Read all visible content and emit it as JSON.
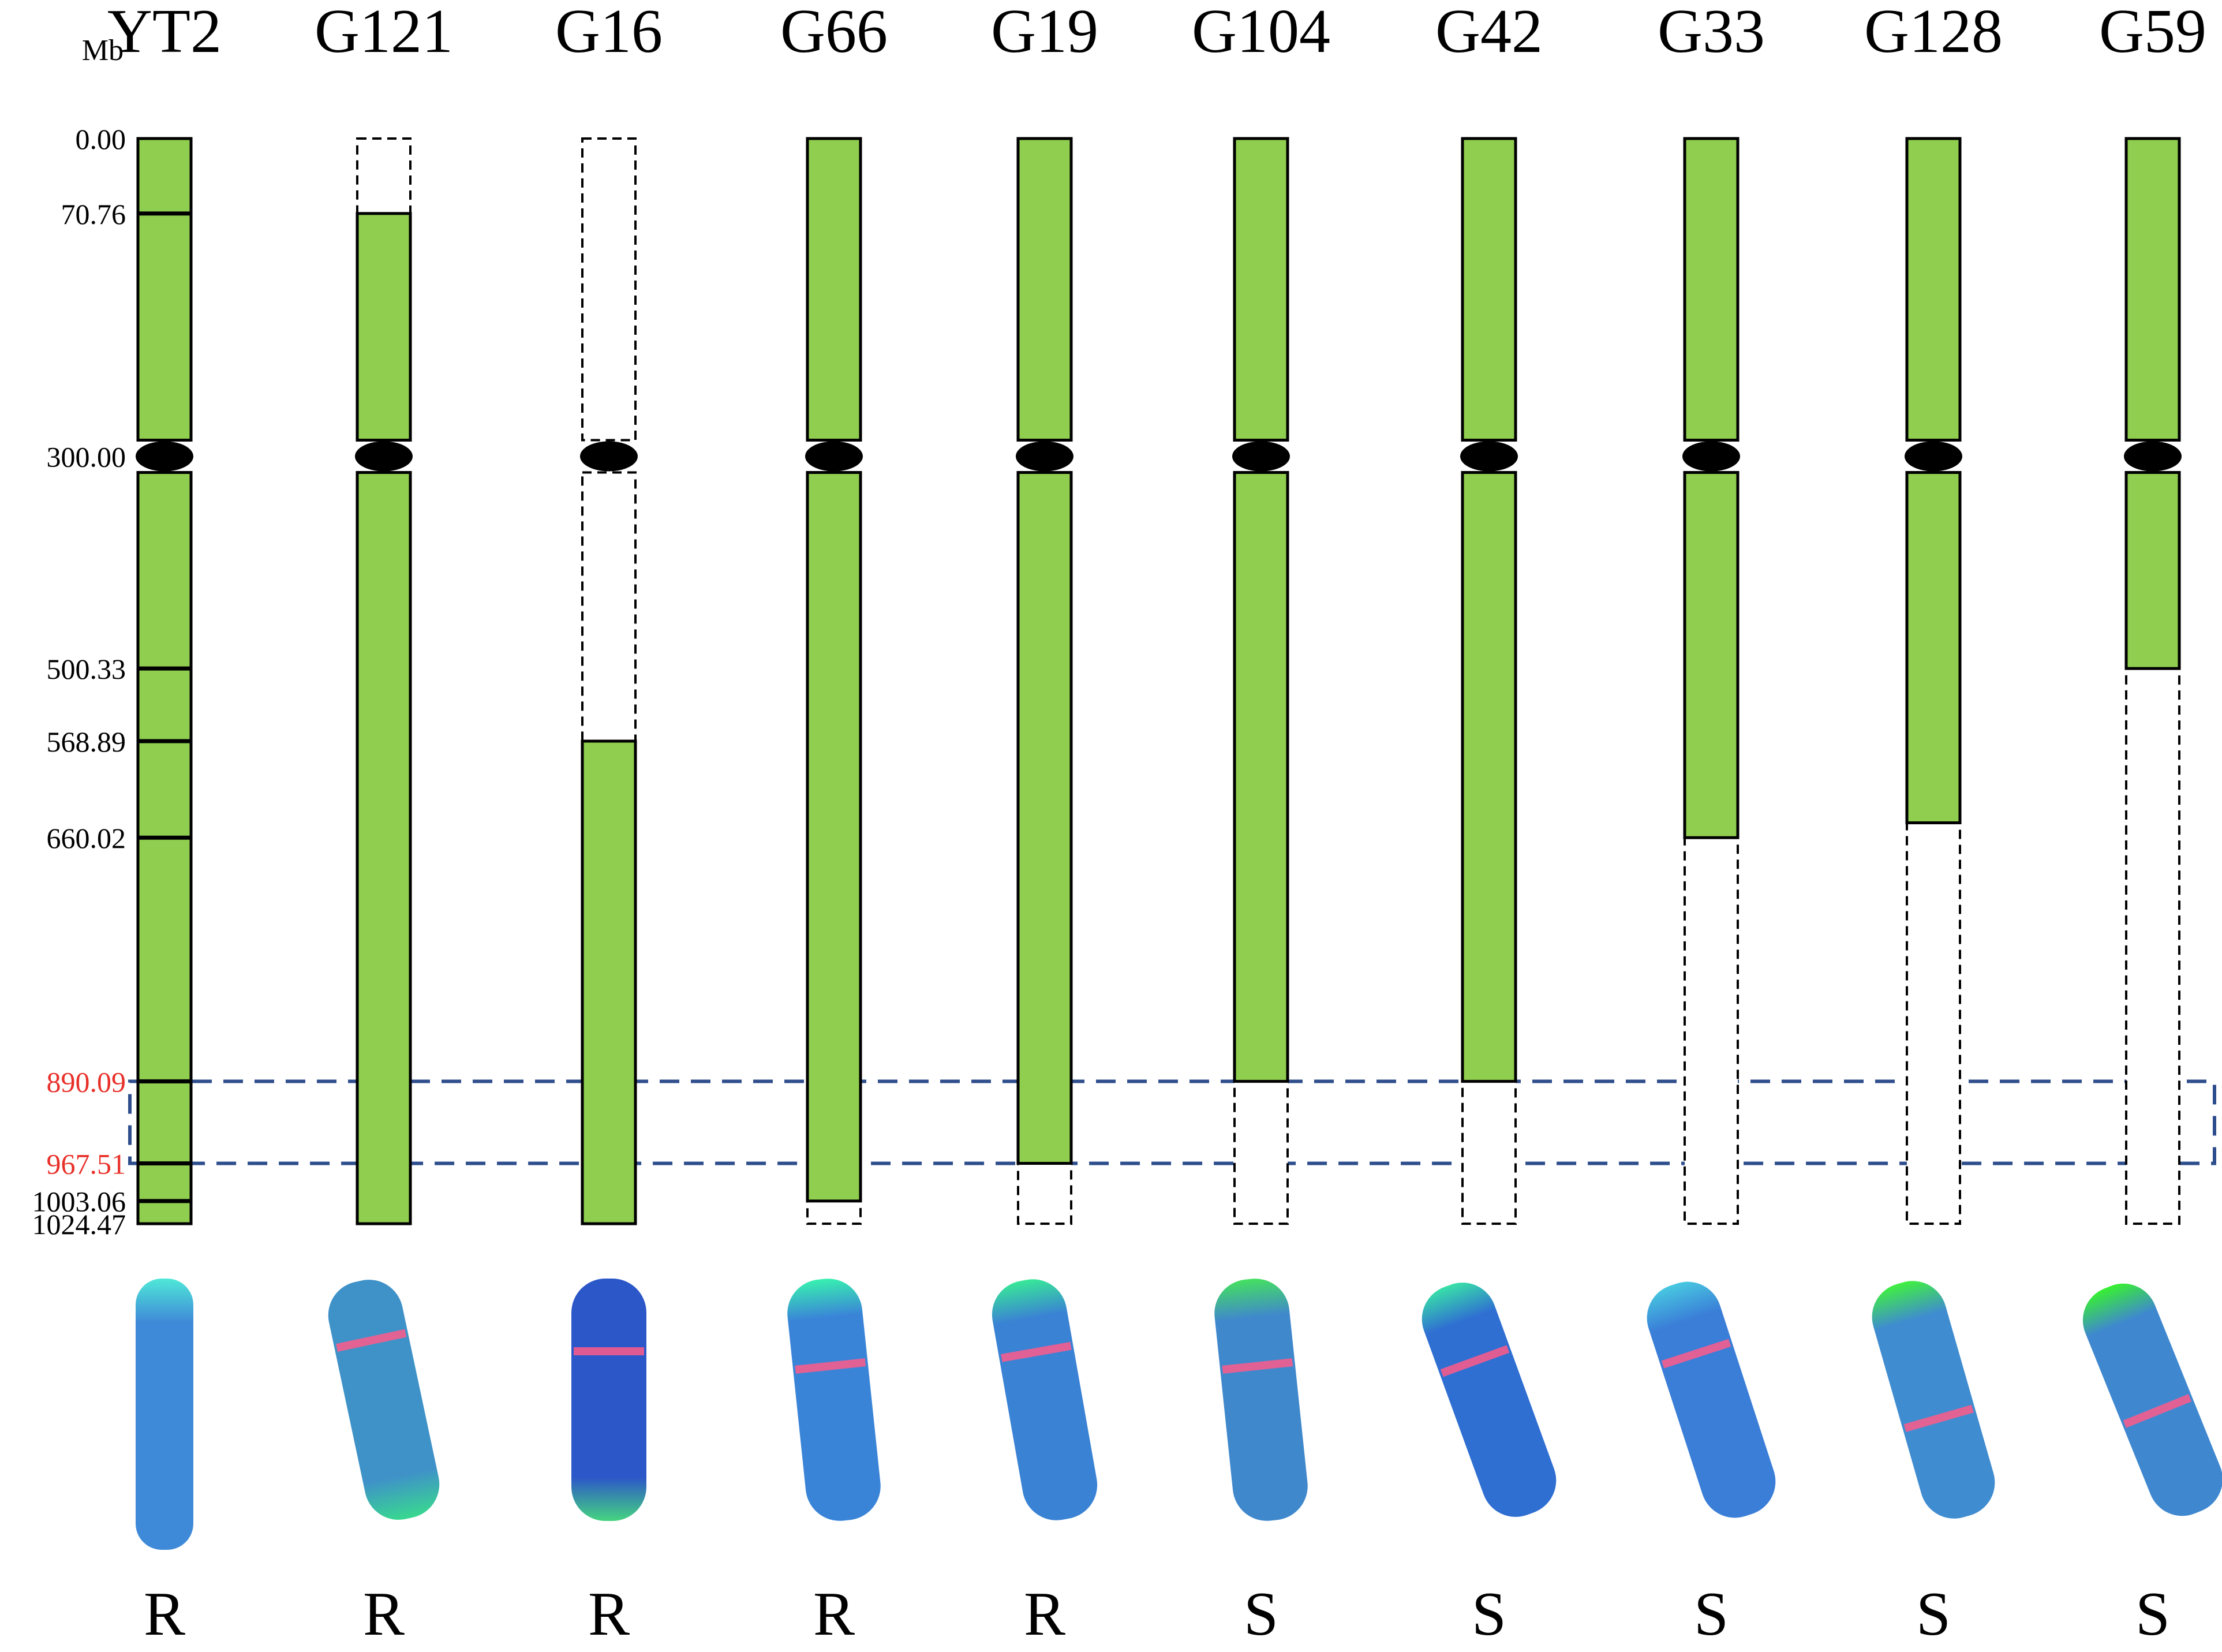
{
  "unit_label": "Mb",
  "colors": {
    "segment_fill": "#8fce4f",
    "segment_stroke": "#000000",
    "centromere": "#000000",
    "highlight_box": "#2e4d8c",
    "highlight_label": "#e8302a",
    "axis_label": "#000000"
  },
  "scale": {
    "max_mb": 1024.47,
    "centromere_mb": 300.0,
    "ticks": [
      {
        "label": "0.00",
        "value": 0.0,
        "highlight": false,
        "marker": false
      },
      {
        "label": "70.76",
        "value": 70.76,
        "highlight": false,
        "marker": true
      },
      {
        "label": "300.00",
        "value": 300.0,
        "highlight": false,
        "marker": false
      },
      {
        "label": "500.33",
        "value": 500.33,
        "highlight": false,
        "marker": true
      },
      {
        "label": "568.89",
        "value": 568.89,
        "highlight": false,
        "marker": true
      },
      {
        "label": "660.02",
        "value": 660.02,
        "highlight": false,
        "marker": true
      },
      {
        "label": "890.09",
        "value": 890.09,
        "highlight": true,
        "marker": true
      },
      {
        "label": "967.51",
        "value": 967.51,
        "highlight": true,
        "marker": true
      },
      {
        "label": "1003.06",
        "value": 1003.06,
        "highlight": false,
        "marker": true
      },
      {
        "label": "1024.47",
        "value": 1024.47,
        "highlight": false,
        "marker": false
      }
    ]
  },
  "highlight_region": {
    "start": 890.09,
    "end": 967.51
  },
  "lines": [
    {
      "name": "YT2",
      "phenotype": "R",
      "present": [
        [
          0,
          1024.47
        ]
      ],
      "absent": [],
      "fish": {
        "body": "#3f8ad8",
        "tip": "#4fe8d8",
        "tip_end": "top",
        "band": false,
        "band_pos": 0.0
      }
    },
    {
      "name": "G121",
      "phenotype": "R",
      "present": [
        [
          70.76,
          1024.47
        ]
      ],
      "absent": [
        [
          0,
          70.76
        ]
      ],
      "fish": {
        "body": "#3f92c8",
        "tip": "#38d890",
        "tip_end": "bottom",
        "band": true,
        "band_pos": 0.25
      }
    },
    {
      "name": "G16",
      "phenotype": "R",
      "present": [
        [
          568.89,
          1024.47
        ]
      ],
      "absent": [
        [
          0,
          568.89
        ]
      ],
      "fish": {
        "body": "#2c57c8",
        "tip": "#45d480",
        "tip_end": "bottom",
        "band": true,
        "band_pos": 0.3
      }
    },
    {
      "name": "G66",
      "phenotype": "R",
      "present": [
        [
          0,
          1003.06
        ]
      ],
      "absent": [
        [
          1003.06,
          1024.47
        ]
      ],
      "fish": {
        "body": "#3a84d8",
        "tip": "#38f0b0",
        "tip_end": "top",
        "band": true,
        "band_pos": 0.36
      }
    },
    {
      "name": "G19",
      "phenotype": "R",
      "present": [
        [
          0,
          967.51
        ]
      ],
      "absent": [
        [
          967.51,
          1024.47
        ]
      ],
      "fish": {
        "body": "#3a82d4",
        "tip": "#38e898",
        "tip_end": "top",
        "band": true,
        "band_pos": 0.3
      }
    },
    {
      "name": "G104",
      "phenotype": "S",
      "present": [
        [
          0,
          890.09
        ]
      ],
      "absent": [
        [
          890.09,
          1024.47
        ]
      ],
      "fish": {
        "body": "#4088cc",
        "tip": "#44e060",
        "tip_end": "top",
        "band": true,
        "band_pos": 0.36
      }
    },
    {
      "name": "G42",
      "phenotype": "S",
      "present": [
        [
          0,
          890.09
        ]
      ],
      "absent": [
        [
          890.09,
          1024.47
        ]
      ],
      "fish": {
        "body": "#2f6fd2",
        "tip": "#38e0a8",
        "tip_end": "top",
        "band": true,
        "band_pos": 0.33
      }
    },
    {
      "name": "G33",
      "phenotype": "S",
      "present": [
        [
          0,
          660.02
        ]
      ],
      "absent": [
        [
          660.02,
          1024.47
        ]
      ],
      "fish": {
        "body": "#3a7ed8",
        "tip": "#48c8e0",
        "tip_end": "top",
        "band": true,
        "band_pos": 0.3
      }
    },
    {
      "name": "G128",
      "phenotype": "S",
      "present": [
        [
          0,
          646.0
        ]
      ],
      "absent": [
        [
          646.0,
          1024.47
        ]
      ],
      "fish": {
        "body": "#3f8cd0",
        "tip": "#40f040",
        "tip_end": "top",
        "band": true,
        "band_pos": 0.58
      }
    },
    {
      "name": "G59",
      "phenotype": "S",
      "present": [
        [
          0,
          500.33
        ]
      ],
      "absent": [
        [
          500.33,
          1024.47
        ]
      ],
      "fish": {
        "body": "#3f88d0",
        "tip": "#38f030",
        "tip_end": "top",
        "band": true,
        "band_pos": 0.55
      }
    }
  ]
}
